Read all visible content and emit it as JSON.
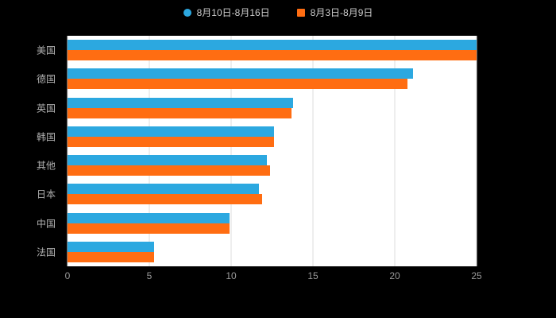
{
  "colors": {
    "page_background": "#000000",
    "plot_background": "#ffffff",
    "grid_line": "#dddddd",
    "legend_text": "#cccccc",
    "category_text": "#b0b0b0",
    "tick_text": "#999999",
    "series_blue": "#2ca8e0",
    "series_orange": "#ff6d12"
  },
  "legend": [
    {
      "label": "8月10日-8月16日",
      "color": "#2ca8e0",
      "shape": "circle"
    },
    {
      "label": "8月3日-8月9日",
      "color": "#ff6d12",
      "shape": "square"
    }
  ],
  "chart_data": {
    "type": "bar",
    "orientation": "horizontal",
    "title": "",
    "xlabel": "",
    "ylabel": "",
    "categories": [
      "美国",
      "德国",
      "英国",
      "韩国",
      "其他",
      "日本",
      "中国",
      "法国"
    ],
    "series": [
      {
        "name": "8月10日-8月16日",
        "color": "#2ca8e0",
        "values": [
          25,
          21.1,
          13.8,
          12.6,
          12.2,
          11.7,
          9.9,
          5.3
        ]
      },
      {
        "name": "8月3日-8月9日",
        "color": "#ff6d12",
        "values": [
          25,
          20.8,
          13.7,
          12.6,
          12.4,
          11.9,
          9.9,
          5.3
        ]
      }
    ],
    "xlim": [
      0,
      25
    ],
    "x_ticks": [
      0,
      5,
      10,
      15,
      20,
      25
    ],
    "grid": true,
    "legend_position": "top"
  }
}
